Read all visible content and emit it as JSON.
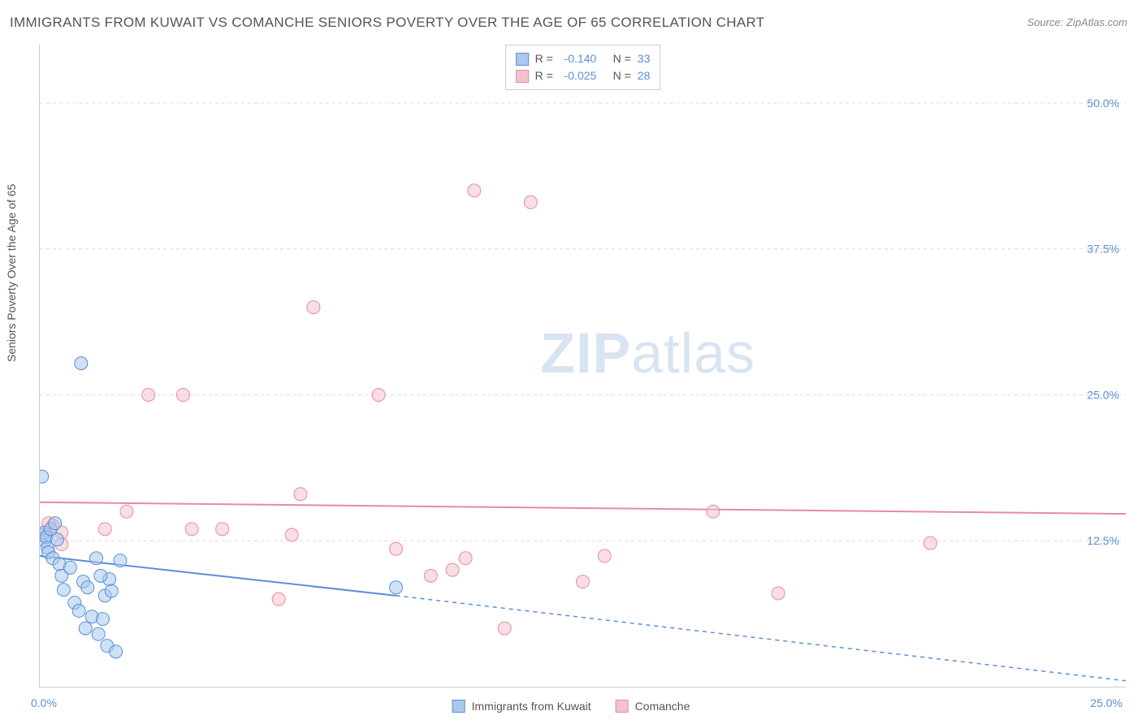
{
  "title": "IMMIGRANTS FROM KUWAIT VS COMANCHE SENIORS POVERTY OVER THE AGE OF 65 CORRELATION CHART",
  "source": "Source: ZipAtlas.com",
  "y_axis_title": "Seniors Poverty Over the Age of 65",
  "watermark_bold": "ZIP",
  "watermark_light": "atlas",
  "chart": {
    "type": "scatter",
    "background_color": "#ffffff",
    "grid_color": "#dddddd",
    "axis_color": "#cccccc",
    "tick_label_color": "#5a8fd6",
    "text_color": "#555555",
    "xlim": [
      0,
      25
    ],
    "ylim": [
      0,
      55
    ],
    "x_tick_positions": [
      0,
      5,
      10,
      15,
      20,
      25
    ],
    "x_left_label": "0.0%",
    "x_right_label": "25.0%",
    "y_gridlines": [
      12.5,
      25.0,
      37.5,
      50.0
    ],
    "y_tick_labels": [
      "12.5%",
      "25.0%",
      "37.5%",
      "50.0%"
    ],
    "marker_radius": 8,
    "marker_opacity": 0.55,
    "line_width": 2
  },
  "series": [
    {
      "name": "Immigrants from Kuwait",
      "color_fill": "#a8c8ec",
      "color_stroke": "#5a8fd6",
      "r_value": "-0.140",
      "n_value": "33",
      "trend": {
        "x1": 0,
        "y1": 11.2,
        "x2": 8.2,
        "y2": 7.8,
        "extrap_x2": 25,
        "extrap_y2": 0.5
      },
      "points": [
        [
          0.05,
          13.0
        ],
        [
          0.1,
          13.2
        ],
        [
          0.12,
          12.5
        ],
        [
          0.15,
          12.8
        ],
        [
          0.18,
          11.9
        ],
        [
          0.05,
          18.0
        ],
        [
          0.2,
          11.5
        ],
        [
          0.25,
          13.5
        ],
        [
          0.3,
          11.0
        ],
        [
          0.35,
          14.0
        ],
        [
          0.4,
          12.6
        ],
        [
          0.45,
          10.5
        ],
        [
          0.5,
          9.5
        ],
        [
          0.55,
          8.3
        ],
        [
          0.7,
          10.2
        ],
        [
          0.8,
          7.2
        ],
        [
          0.9,
          6.5
        ],
        [
          1.0,
          9.0
        ],
        [
          1.05,
          5.0
        ],
        [
          1.1,
          8.5
        ],
        [
          1.2,
          6.0
        ],
        [
          1.35,
          4.5
        ],
        [
          1.45,
          5.8
        ],
        [
          1.5,
          7.8
        ],
        [
          1.55,
          3.5
        ],
        [
          1.6,
          9.2
        ],
        [
          1.75,
          3.0
        ],
        [
          1.85,
          10.8
        ],
        [
          0.95,
          27.7
        ],
        [
          1.3,
          11.0
        ],
        [
          1.4,
          9.5
        ],
        [
          1.65,
          8.2
        ],
        [
          8.2,
          8.5
        ]
      ]
    },
    {
      "name": "Comanche",
      "color_fill": "#f4c2cc",
      "color_stroke": "#e58ca0",
      "r_value": "-0.025",
      "n_value": "28",
      "trend": {
        "x1": 0,
        "y1": 15.8,
        "x2": 25,
        "y2": 14.8
      },
      "points": [
        [
          0.3,
          13.8
        ],
        [
          0.5,
          12.2
        ],
        [
          0.5,
          13.2
        ],
        [
          1.5,
          13.5
        ],
        [
          2.0,
          15.0
        ],
        [
          2.5,
          25.0
        ],
        [
          3.3,
          25.0
        ],
        [
          3.5,
          13.5
        ],
        [
          4.2,
          13.5
        ],
        [
          5.5,
          7.5
        ],
        [
          5.8,
          13.0
        ],
        [
          6.0,
          16.5
        ],
        [
          6.3,
          32.5
        ],
        [
          7.8,
          25.0
        ],
        [
          8.2,
          11.8
        ],
        [
          9.0,
          9.5
        ],
        [
          9.5,
          10.0
        ],
        [
          9.8,
          11.0
        ],
        [
          10.0,
          42.5
        ],
        [
          11.3,
          41.5
        ],
        [
          10.7,
          5.0
        ],
        [
          12.5,
          9.0
        ],
        [
          13.0,
          11.2
        ],
        [
          15.5,
          15.0
        ],
        [
          17.0,
          8.0
        ],
        [
          20.5,
          12.3
        ],
        [
          0.2,
          14.0
        ],
        [
          0.15,
          13.0
        ]
      ]
    }
  ],
  "legend_top_labels": {
    "r": "R =",
    "n": "N ="
  },
  "legend_bottom": [
    {
      "label": "Immigrants from Kuwait",
      "fill": "#a8c8ec",
      "stroke": "#5a8fd6"
    },
    {
      "label": "Comanche",
      "fill": "#f4c2cc",
      "stroke": "#e58ca0"
    }
  ]
}
